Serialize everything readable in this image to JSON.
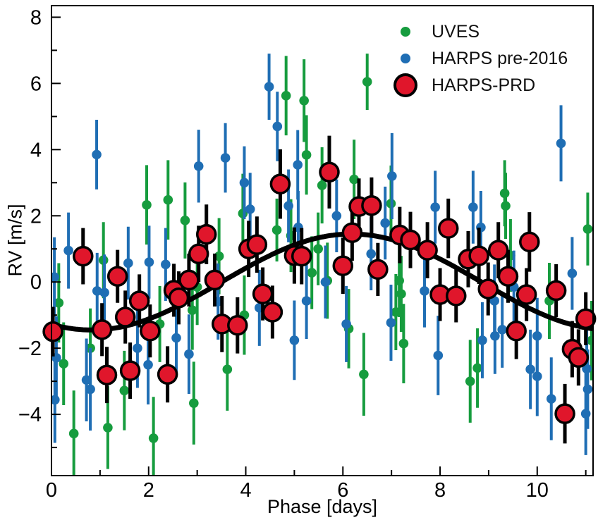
{
  "chart_data": {
    "type": "scatter",
    "title": "",
    "xlabel": "Phase [days]",
    "ylabel": "RV [m/s]",
    "xlim": [
      0,
      11.15
    ],
    "ylim": [
      -5.85,
      8.35
    ],
    "grid": false,
    "legend_position": "upper center-right",
    "x_major_ticks": [
      0,
      2,
      4,
      6,
      8,
      10
    ],
    "x_minor_ticks": [
      1,
      3,
      5,
      7,
      9,
      11
    ],
    "y_major_ticks": [
      -4,
      -2,
      0,
      2,
      4,
      6,
      8
    ],
    "y_minor_ticks": [
      -5,
      -3,
      -1,
      1,
      3,
      5,
      7
    ],
    "colors": {
      "uves_green": "#169c3e",
      "harps_blue": "#1f6eb4",
      "prd_red": "#e0162b",
      "curve_black": "#000000"
    },
    "series": [
      {
        "name": "UVES",
        "marker": {
          "shape": "circle",
          "fill": "#169c3e",
          "edge": null,
          "radius": 6.8
        },
        "errorbar_width": 4,
        "points": [
          [
            0.15,
            -0.63,
            1.2
          ],
          [
            0.25,
            -2.47,
            1.25
          ],
          [
            0.46,
            -4.58,
            1.3
          ],
          [
            0.8,
            -2.0,
            1.2
          ],
          [
            1.07,
            0.66,
            1.15
          ],
          [
            1.16,
            -4.4,
            1.25
          ],
          [
            1.5,
            -3.28,
            1.2
          ],
          [
            1.96,
            2.33,
            1.2
          ],
          [
            2.1,
            -4.72,
            1.25
          ],
          [
            2.23,
            -1.27,
            1.15
          ],
          [
            2.4,
            2.48,
            1.2
          ],
          [
            2.75,
            1.86,
            1.15
          ],
          [
            2.9,
            -0.85,
            1.2
          ],
          [
            2.93,
            -3.66,
            1.25
          ],
          [
            3.0,
            -0.15,
            1.15
          ],
          [
            3.45,
            0.78,
            1.15
          ],
          [
            3.62,
            -2.64,
            1.25
          ],
          [
            3.94,
            2.07,
            1.2
          ],
          [
            3.97,
            -1.0,
            1.2
          ],
          [
            4.64,
            1.57,
            0.95
          ],
          [
            4.83,
            5.63,
            1.2
          ],
          [
            4.93,
            1.4,
            1.1
          ],
          [
            5.2,
            5.48,
            1.25
          ],
          [
            5.25,
            3.84,
            1.2
          ],
          [
            5.36,
            0.28,
            1.1
          ],
          [
            5.49,
            1.0,
            1.1
          ],
          [
            5.57,
            2.92,
            1.15
          ],
          [
            5.68,
            0.04,
            1.15
          ],
          [
            6.12,
            -1.41,
            1.2
          ],
          [
            6.23,
            3.1,
            1.2
          ],
          [
            6.43,
            -2.79,
            1.25
          ],
          [
            6.5,
            6.05,
            0.85
          ],
          [
            6.99,
            2.37,
            1.15
          ],
          [
            7.09,
            -0.91,
            1.15
          ],
          [
            7.16,
            0.04,
            1.1
          ],
          [
            7.2,
            -0.36,
            1.15
          ],
          [
            7.25,
            -1.86,
            1.2
          ],
          [
            8.62,
            -3.0,
            1.25
          ],
          [
            8.77,
            -2.6,
            1.2
          ],
          [
            9.33,
            2.68,
            1.0
          ],
          [
            9.35,
            2.3,
            1.0
          ],
          [
            9.45,
            0.8,
            1.1
          ],
          [
            10.25,
            -0.57,
            1.15
          ],
          [
            11.04,
            1.6,
            1.1
          ],
          [
            11.12,
            -1.77,
            1.2
          ]
        ]
      },
      {
        "name": "HARPS pre-2016",
        "marker": {
          "shape": "circle",
          "fill": "#1f6eb4",
          "edge": null,
          "radius": 6.8
        },
        "errorbar_width": 4,
        "points": [
          [
            0.06,
            0.15,
            1.2
          ],
          [
            0.07,
            -3.56,
            1.3
          ],
          [
            0.1,
            -2.29,
            1.25
          ],
          [
            0.35,
            0.95,
            1.15
          ],
          [
            0.72,
            -2.96,
            1.25
          ],
          [
            0.8,
            -3.24,
            1.25
          ],
          [
            0.93,
            3.85,
            1.05
          ],
          [
            0.94,
            -0.27,
            1.15
          ],
          [
            1.09,
            -0.32,
            1.15
          ],
          [
            1.58,
            0.57,
            1.1
          ],
          [
            1.77,
            -2.0,
            1.2
          ],
          [
            1.99,
            -2.5,
            1.2
          ],
          [
            2.01,
            0.6,
            1.1
          ],
          [
            2.35,
            0.53,
            1.1
          ],
          [
            2.57,
            -1.69,
            1.15
          ],
          [
            2.83,
            -2.18,
            1.2
          ],
          [
            3.03,
            3.5,
            1.1
          ],
          [
            3.43,
            -0.59,
            1.15
          ],
          [
            3.58,
            3.75,
            1.05
          ],
          [
            3.97,
            3.0,
            1.1
          ],
          [
            4.09,
            2.2,
            1.1
          ],
          [
            4.28,
            -0.78,
            1.15
          ],
          [
            4.48,
            5.9,
            1.0
          ],
          [
            4.65,
            4.7,
            1.05
          ],
          [
            4.88,
            2.3,
            1.1
          ],
          [
            5.0,
            -1.76,
            1.2
          ],
          [
            5.07,
            3.54,
            1.05
          ],
          [
            5.08,
            1.65,
            1.1
          ],
          [
            5.25,
            -0.57,
            1.15
          ],
          [
            5.64,
            0.0,
            1.1
          ],
          [
            5.87,
            2.0,
            1.1
          ],
          [
            6.07,
            -1.27,
            1.15
          ],
          [
            6.58,
            0.85,
            1.1
          ],
          [
            6.87,
            1.78,
            1.1
          ],
          [
            6.99,
            -1.23,
            1.15
          ],
          [
            7.01,
            3.2,
            1.3
          ],
          [
            7.68,
            -0.27,
            1.1
          ],
          [
            7.9,
            2.26,
            1.1
          ],
          [
            7.96,
            -2.22,
            1.2
          ],
          [
            8.68,
            2.26,
            1.1
          ],
          [
            8.84,
            1.65,
            1.1
          ],
          [
            8.87,
            -1.76,
            1.15
          ],
          [
            9.12,
            -0.57,
            1.1
          ],
          [
            9.13,
            -1.63,
            1.15
          ],
          [
            9.28,
            -1.44,
            1.15
          ],
          [
            9.52,
            -0.15,
            1.1
          ],
          [
            9.86,
            -2.64,
            1.2
          ],
          [
            10.0,
            -2.85,
            1.2
          ],
          [
            10.0,
            -1.63,
            1.15
          ],
          [
            10.29,
            -3.53,
            1.25
          ],
          [
            10.49,
            4.19,
            1.15
          ],
          [
            10.72,
            0.26,
            1.1
          ],
          [
            11.0,
            -3.98,
            1.25
          ],
          [
            11.02,
            -2.62,
            1.2
          ],
          [
            11.04,
            -3.24,
            1.2
          ]
        ]
      },
      {
        "name": "HARPS-PRD",
        "marker": {
          "shape": "circle",
          "fill": "#e0162b",
          "edge": "#000000",
          "edge_width": 3.5,
          "radius": 13
        },
        "errorbar_width": 5,
        "errorbar_color": "#000000",
        "points": [
          [
            0.03,
            -1.5,
            0.75
          ],
          [
            0.65,
            0.78,
            0.85
          ],
          [
            1.04,
            -1.44,
            0.8
          ],
          [
            1.14,
            -2.81,
            0.85
          ],
          [
            1.36,
            0.17,
            0.8
          ],
          [
            1.52,
            -1.06,
            0.8
          ],
          [
            1.62,
            -2.68,
            0.85
          ],
          [
            1.81,
            -0.57,
            0.8
          ],
          [
            2.03,
            -1.48,
            0.8
          ],
          [
            2.39,
            -2.79,
            0.85
          ],
          [
            2.52,
            -0.25,
            0.8
          ],
          [
            2.62,
            -0.48,
            0.8
          ],
          [
            2.83,
            0.06,
            0.8
          ],
          [
            3.03,
            0.85,
            0.85
          ],
          [
            3.19,
            1.44,
            0.9
          ],
          [
            3.36,
            0.06,
            0.8
          ],
          [
            3.51,
            -1.27,
            0.85
          ],
          [
            3.83,
            -1.31,
            0.85
          ],
          [
            4.06,
            1.0,
            0.85
          ],
          [
            4.23,
            1.13,
            0.85
          ],
          [
            4.35,
            -0.36,
            0.8
          ],
          [
            4.55,
            -0.91,
            0.8
          ],
          [
            4.71,
            2.96,
            1.05
          ],
          [
            5.0,
            0.8,
            0.85
          ],
          [
            5.15,
            0.78,
            0.85
          ],
          [
            5.72,
            3.32,
            1.1
          ],
          [
            6.0,
            0.49,
            0.85
          ],
          [
            6.19,
            1.49,
            0.85
          ],
          [
            6.33,
            2.28,
            0.85
          ],
          [
            6.59,
            2.31,
            0.85
          ],
          [
            6.72,
            0.38,
            0.8
          ],
          [
            7.17,
            1.42,
            0.85
          ],
          [
            7.39,
            1.27,
            0.85
          ],
          [
            7.74,
            0.96,
            0.85
          ],
          [
            8.0,
            -0.38,
            0.8
          ],
          [
            8.17,
            1.62,
            0.9
          ],
          [
            8.33,
            -0.42,
            0.8
          ],
          [
            8.58,
            0.69,
            0.85
          ],
          [
            8.8,
            0.79,
            0.85
          ],
          [
            8.99,
            -0.21,
            0.8
          ],
          [
            9.2,
            0.96,
            0.85
          ],
          [
            9.4,
            0.17,
            0.8
          ],
          [
            9.57,
            -1.48,
            0.85
          ],
          [
            9.78,
            -0.38,
            0.8
          ],
          [
            9.84,
            1.21,
            0.9
          ],
          [
            10.39,
            -0.26,
            0.8
          ],
          [
            10.57,
            -3.98,
            0.9
          ],
          [
            10.72,
            -2.03,
            0.85
          ],
          [
            10.85,
            -2.28,
            0.85
          ],
          [
            11.0,
            -1.11,
            0.8
          ]
        ]
      }
    ],
    "model_curve": {
      "description": "best-fit sinusoidal RV model",
      "color": "#000000",
      "line_width": 7,
      "amplitude": 1.45,
      "mean": 0,
      "period_days": 10.7,
      "ascending_zero_crossing_day": 3.5
    }
  }
}
